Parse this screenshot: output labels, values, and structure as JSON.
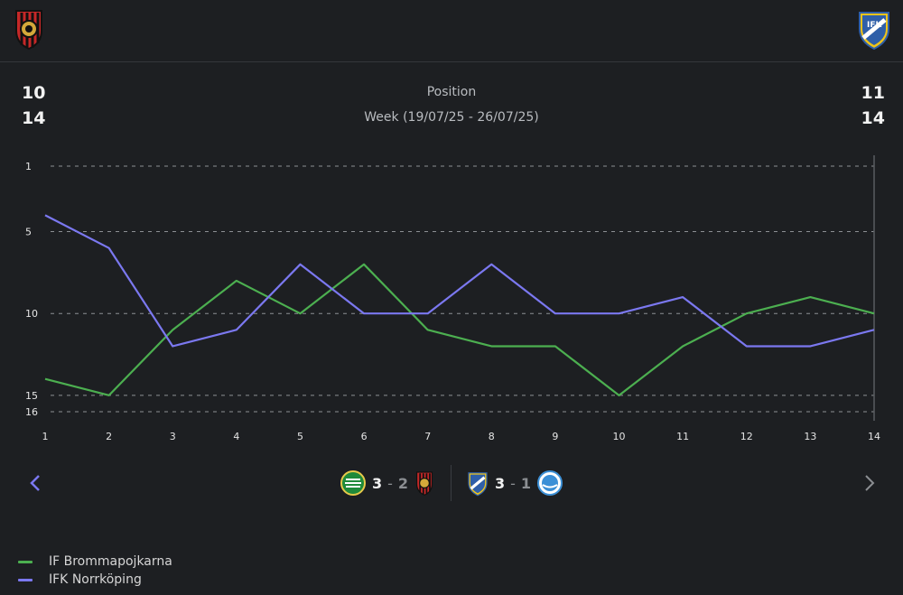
{
  "header": {
    "home_team": "IF Brommapojkarna",
    "away_team": "IFK Norrköping"
  },
  "summary": {
    "home_value_1": "10",
    "home_value_2": "14",
    "title": "Position",
    "subtitle": "Week (19/07/25 - 26/07/25)",
    "away_value_1": "11",
    "away_value_2": "14"
  },
  "chart_data": {
    "type": "line",
    "title": "Position",
    "xlabel": "",
    "ylabel": "",
    "x": [
      1,
      2,
      3,
      4,
      5,
      6,
      7,
      8,
      9,
      10,
      11,
      12,
      13,
      14
    ],
    "y_ticks": [
      1,
      5,
      10,
      15,
      16
    ],
    "ylim": [
      16,
      1
    ],
    "xlim": [
      1,
      14
    ],
    "grid": true,
    "series": [
      {
        "name": "IF Brommapojkarna",
        "color": "#4caf50",
        "values": [
          14,
          15,
          11,
          8,
          10,
          7,
          11,
          12,
          12,
          15,
          12,
          10,
          9,
          10
        ]
      },
      {
        "name": "IFK Norrköping",
        "color": "#7b78f0",
        "values": [
          4,
          6,
          12,
          11,
          7,
          10,
          10,
          7,
          10,
          10,
          9,
          12,
          12,
          11
        ]
      }
    ]
  },
  "matches": [
    {
      "home_score": "3",
      "separator": "-",
      "away_score": "2"
    },
    {
      "home_score": "3",
      "separator": "-",
      "away_score": "1"
    }
  ],
  "legend": [
    {
      "label": "IF Brommapojkarna",
      "color": "#4caf50"
    },
    {
      "label": "IFK Norrköping",
      "color": "#7b78f0"
    }
  ]
}
